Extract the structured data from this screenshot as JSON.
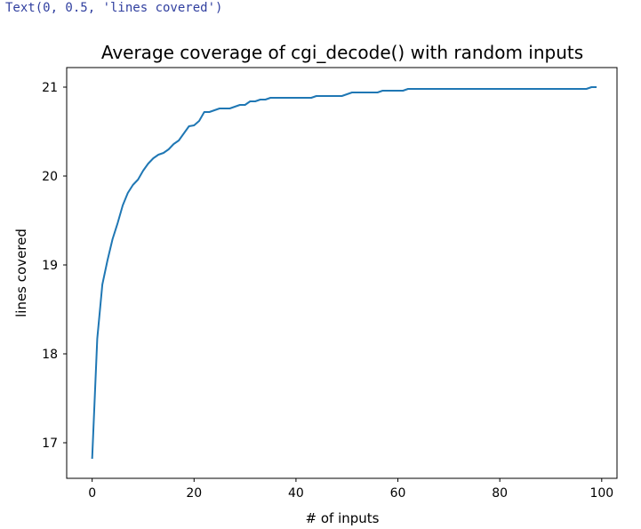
{
  "cell_output": "Text(0, 0.5, 'lines covered')",
  "colors": {
    "line": "#1f77b4",
    "output_text": "#303f9f",
    "axes": "#000000"
  },
  "chart_data": {
    "type": "line",
    "title": "Average coverage of cgi_decode() with random inputs",
    "xlabel": "# of inputs",
    "ylabel": "lines covered",
    "xlim": [
      -5,
      103
    ],
    "ylim": [
      16.6,
      21.22
    ],
    "xticks": [
      0,
      20,
      40,
      60,
      80,
      100
    ],
    "yticks": [
      17,
      18,
      19,
      20,
      21
    ],
    "grid": false,
    "legend": "none",
    "series": [
      {
        "x": [
          0,
          1,
          2,
          3,
          4,
          5,
          6,
          7,
          8,
          9,
          10,
          11,
          12,
          13,
          14,
          15,
          16,
          17,
          18,
          19,
          20,
          21,
          22,
          23,
          24,
          25,
          26,
          27,
          28,
          29,
          30,
          31,
          32,
          33,
          34,
          35,
          36,
          37,
          38,
          39,
          40,
          41,
          42,
          43,
          44,
          45,
          46,
          47,
          48,
          49,
          50,
          51,
          52,
          53,
          54,
          55,
          56,
          57,
          58,
          59,
          60,
          61,
          62,
          63,
          64,
          65,
          66,
          67,
          68,
          69,
          70,
          71,
          72,
          73,
          74,
          75,
          76,
          77,
          78,
          79,
          80,
          81,
          82,
          83,
          84,
          85,
          86,
          87,
          88,
          89,
          90,
          91,
          92,
          93,
          94,
          95,
          96,
          97,
          98,
          99
        ],
        "values": [
          16.82,
          18.17,
          18.78,
          19.05,
          19.29,
          19.47,
          19.67,
          19.81,
          19.9,
          19.96,
          20.06,
          20.14,
          20.2,
          20.24,
          20.26,
          20.3,
          20.36,
          20.4,
          20.48,
          20.56,
          20.57,
          20.62,
          20.72,
          20.72,
          20.74,
          20.76,
          20.76,
          20.76,
          20.78,
          20.8,
          20.8,
          20.84,
          20.84,
          20.86,
          20.86,
          20.88,
          20.88,
          20.88,
          20.88,
          20.88,
          20.88,
          20.88,
          20.88,
          20.88,
          20.9,
          20.9,
          20.9,
          20.9,
          20.9,
          20.9,
          20.92,
          20.94,
          20.94,
          20.94,
          20.94,
          20.94,
          20.94,
          20.96,
          20.96,
          20.96,
          20.96,
          20.96,
          20.98,
          20.98,
          20.98,
          20.98,
          20.98,
          20.98,
          20.98,
          20.98,
          20.98,
          20.98,
          20.98,
          20.98,
          20.98,
          20.98,
          20.98,
          20.98,
          20.98,
          20.98,
          20.98,
          20.98,
          20.98,
          20.98,
          20.98,
          20.98,
          20.98,
          20.98,
          20.98,
          20.98,
          20.98,
          20.98,
          20.98,
          20.98,
          20.98,
          20.98,
          20.98,
          20.98,
          21.0,
          21.0
        ]
      }
    ]
  }
}
